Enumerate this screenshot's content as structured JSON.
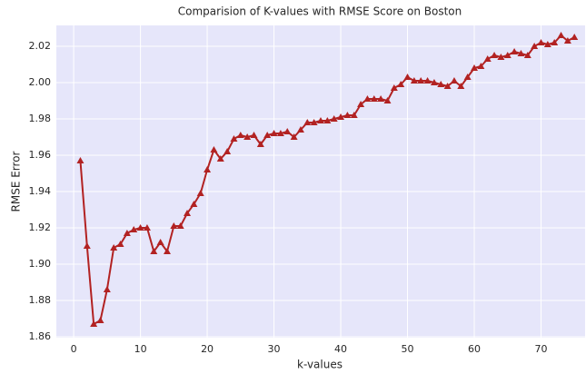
{
  "chart_data": {
    "type": "line",
    "title": "Comparision of K-values with RMSE Score on Boston",
    "x_label": "k-values",
    "y_label": "RMSE Error",
    "x": [
      1,
      2,
      3,
      4,
      5,
      6,
      7,
      8,
      9,
      10,
      11,
      12,
      13,
      14,
      15,
      16,
      17,
      18,
      19,
      20,
      21,
      22,
      23,
      24,
      25,
      26,
      27,
      28,
      29,
      30,
      31,
      32,
      33,
      34,
      35,
      36,
      37,
      38,
      39,
      40,
      41,
      42,
      43,
      44,
      45,
      46,
      47,
      48,
      49,
      50,
      51,
      52,
      53,
      54,
      55,
      56,
      57,
      58,
      59,
      60,
      61,
      62,
      63,
      64,
      65,
      66,
      67,
      68,
      69,
      70,
      71,
      72,
      73,
      74,
      75
    ],
    "series": [
      {
        "name": "RMSE",
        "color": "#b22222",
        "marker": "triangle",
        "values": [
          1.957,
          1.91,
          1.867,
          1.869,
          1.886,
          1.909,
          1.911,
          1.917,
          1.919,
          1.92,
          1.92,
          1.907,
          1.912,
          1.907,
          1.921,
          1.921,
          1.928,
          1.933,
          1.939,
          1.952,
          1.963,
          1.958,
          1.962,
          1.969,
          1.971,
          1.97,
          1.971,
          1.966,
          1.971,
          1.972,
          1.972,
          1.973,
          1.97,
          1.974,
          1.978,
          1.978,
          1.979,
          1.979,
          1.98,
          1.981,
          1.982,
          1.982,
          1.988,
          1.991,
          1.991,
          1.991,
          1.99,
          1.997,
          1.999,
          2.003,
          2.001,
          2.001,
          2.001,
          2.0,
          1.999,
          1.998,
          2.001,
          1.998,
          2.003,
          2.008,
          2.009,
          2.013,
          2.015,
          2.014,
          2.015,
          2.017,
          2.016,
          2.015,
          2.02,
          2.022,
          2.021,
          2.022,
          2.026,
          2.023,
          2.025
        ]
      }
    ],
    "xlim": [
      -2.6,
      76.6
    ],
    "xticks": [
      0,
      10,
      20,
      30,
      40,
      50,
      60,
      70
    ],
    "ylim": [
      1.8595,
      2.0315
    ],
    "yticks": [
      {
        "value": 1.86,
        "label": "1.86"
      },
      {
        "value": 1.88,
        "label": "1.88"
      },
      {
        "value": 1.9,
        "label": "1.90"
      },
      {
        "value": 1.92,
        "label": "1.92"
      },
      {
        "value": 1.94,
        "label": "1.94"
      },
      {
        "value": 1.96,
        "label": "1.96"
      },
      {
        "value": 1.98,
        "label": "1.98"
      },
      {
        "value": 2.0,
        "label": "2.00"
      },
      {
        "value": 2.02,
        "label": "2.02"
      }
    ],
    "grid": true,
    "background": "#e6e6fa"
  }
}
